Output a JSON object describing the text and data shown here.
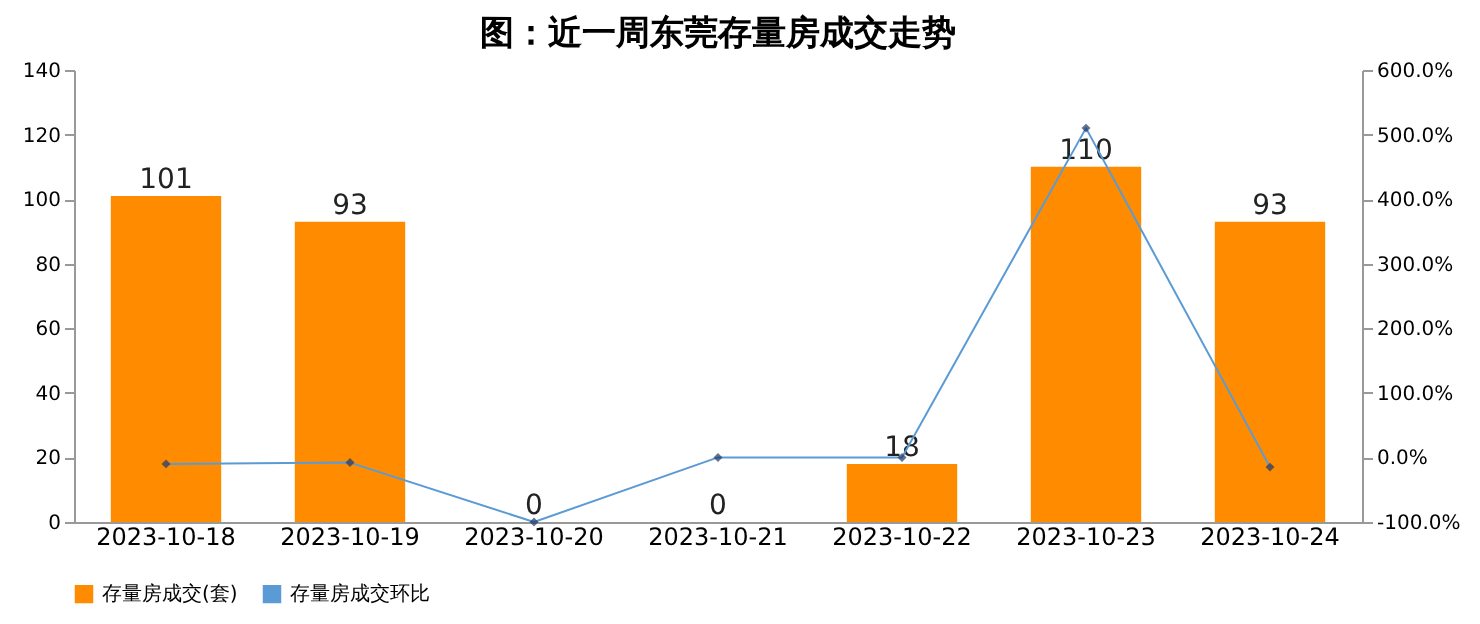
{
  "chart_data": {
    "type": "bar",
    "title": "图：近一周东莞存量房成交走势",
    "categories": [
      "2023-10-18",
      "2023-10-19",
      "2023-10-20",
      "2023-10-21",
      "2023-10-22",
      "2023-10-23",
      "2023-10-24"
    ],
    "series": [
      {
        "name": "存量房成交(套)",
        "color": "#ff8c00",
        "values": [
          101,
          93,
          0,
          0,
          18,
          110,
          93
        ],
        "value_labels": [
          "101",
          "93",
          "0",
          "0",
          "18",
          "110",
          "93"
        ]
      },
      {
        "name": "存量房成交环比",
        "type": "line",
        "axis": "y2",
        "color": "#5b9bd5",
        "marker": "diamond",
        "values": [
          -10,
          -8,
          -100,
          0,
          0,
          510,
          -15
        ]
      }
    ],
    "ylim": [
      0,
      140
    ],
    "yticks": [
      0,
      20,
      40,
      60,
      80,
      100,
      120,
      140
    ],
    "y2lim": [
      -100,
      600
    ],
    "y2ticks": [
      {
        "value": -100,
        "label": "-100.0%"
      },
      {
        "value": 0,
        "label": "0.0%"
      },
      {
        "value": 100,
        "label": "100.0%"
      },
      {
        "value": 200,
        "label": "200.0%"
      },
      {
        "value": 300,
        "label": "300.0%"
      },
      {
        "value": 400,
        "label": "400.0%"
      },
      {
        "value": 500,
        "label": "500.0%"
      },
      {
        "value": 600,
        "label": "600.0%"
      }
    ],
    "legend": "bottom",
    "grid": false
  }
}
